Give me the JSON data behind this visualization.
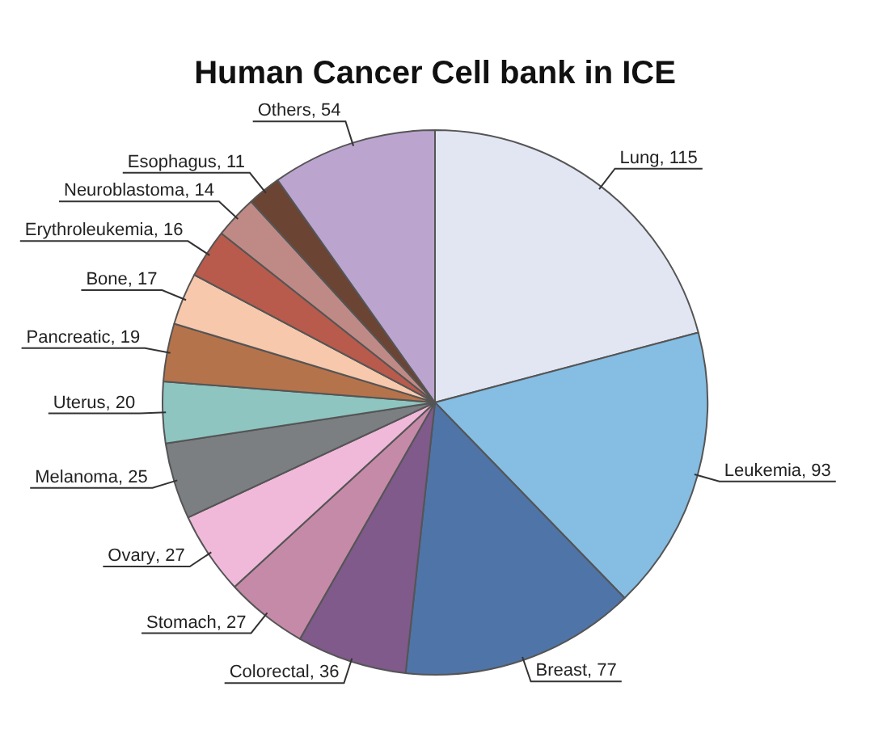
{
  "chart_data": {
    "type": "pie",
    "title": "Human Cancer Cell bank in ICE",
    "categories": [
      "Lung",
      "Leukemia",
      "Breast",
      "Colorectal",
      "Stomach",
      "Ovary",
      "Melanoma",
      "Uterus",
      "Pancreatic",
      "Bone",
      "Erythroleukemia",
      "Neuroblastoma",
      "Esophagus",
      "Others"
    ],
    "values": [
      115,
      93,
      77,
      36,
      27,
      27,
      25,
      20,
      19,
      17,
      16,
      14,
      11,
      54
    ],
    "value_labels": [
      ", 115",
      ", 93",
      ", 77",
      ", 36",
      ", 27",
      ", 27",
      ", 25",
      ", 20",
      ", 19",
      ", 17",
      ", 16",
      ", 14",
      ", 11",
      ", 54"
    ],
    "colors": [
      "#e2e6f3",
      "#85bde3",
      "#4f74a8",
      "#7f5a8a",
      "#c68aa9",
      "#f0b9d9",
      "#7b7f82",
      "#8ec5c0",
      "#b5734c",
      "#f7c8ac",
      "#b85b4c",
      "#bf8a85",
      "#6b4434",
      "#bba5cf"
    ],
    "legend": false
  }
}
